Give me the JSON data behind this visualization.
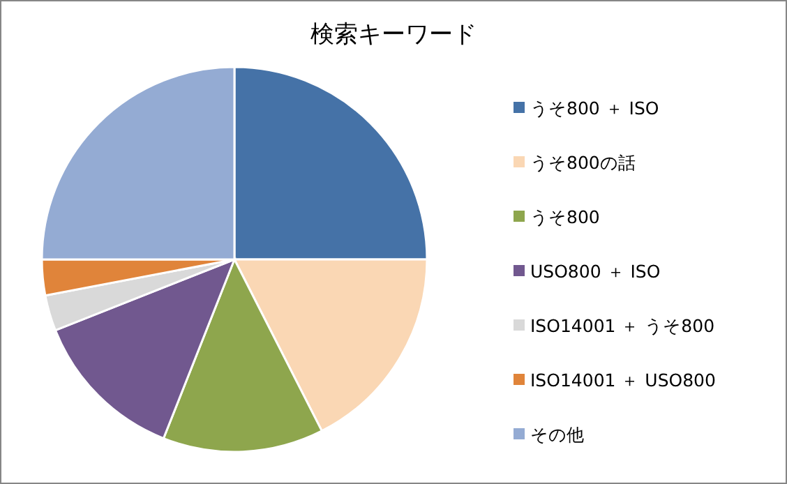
{
  "chart_data": {
    "type": "pie",
    "title": "検索キーワード",
    "categories": [
      "うそ800 ＋ ISO",
      "うそ800の話",
      "うそ800",
      "USO800 ＋ ISO",
      "ISO14001 ＋ うそ800",
      "ISO14001 ＋ USO800",
      "その他"
    ],
    "values": [
      25,
      17.5,
      13.5,
      13,
      3,
      3,
      25
    ],
    "colors": [
      "#4572a7",
      "#fad7b4",
      "#8ea64d",
      "#71588f",
      "#d9d9d9",
      "#e0843a",
      "#94abd3"
    ],
    "legend": "right"
  }
}
